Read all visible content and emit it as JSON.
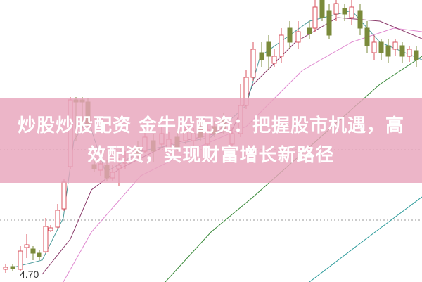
{
  "title": "炒股炒股配资 金牛股配资：把握股市机遇，高效配资，实现财富增长新路径",
  "price_label": "4.70",
  "colors": {
    "up": "#d9505e",
    "down": "#7a8a3a",
    "ma5": "#4a9a9a",
    "ma10": "#8a3a6a",
    "ma20": "#e08ad0",
    "ma60": "#3a8a3a",
    "ma120": "#2a9a9a",
    "banner": "#e8a5bc"
  },
  "chart_data": {
    "type": "candlestick",
    "grid": true,
    "note_label": "4.70"
  }
}
